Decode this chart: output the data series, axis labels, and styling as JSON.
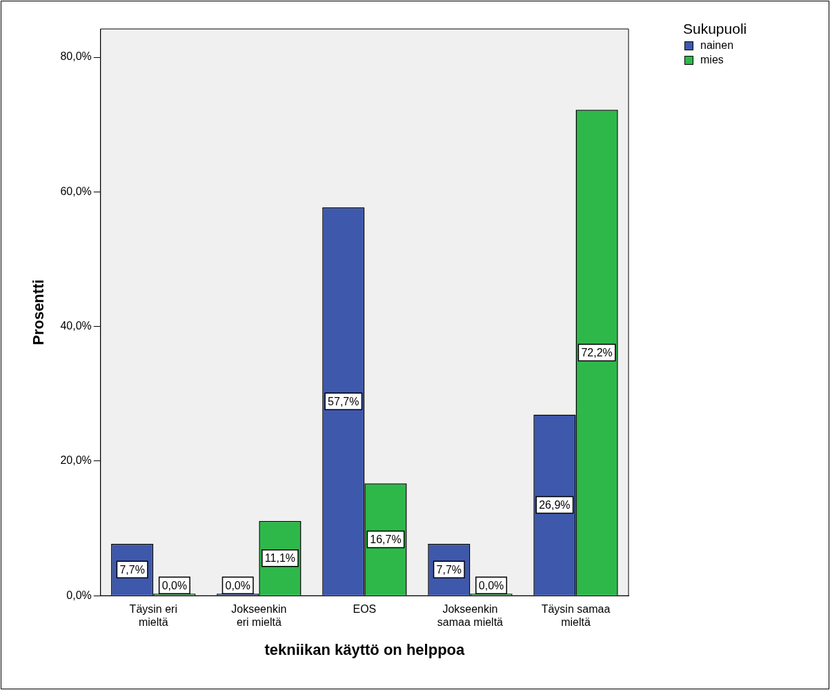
{
  "chart_data": {
    "type": "bar",
    "xlabel": "tekniikan käyttö on helppoa",
    "ylabel": "Prosentti",
    "legend_title": "Sukupuoli",
    "legend": "top right",
    "categories": [
      "Täysin eri mieltä",
      "Jokseenkin eri mieltä",
      "EOS",
      "Jokseenkin samaa mieltä",
      "Täysin samaa mieltä"
    ],
    "series": [
      {
        "name": "nainen",
        "color": "#3e58ac",
        "values": [
          7.7,
          0,
          57.7,
          7.7,
          26.9
        ],
        "value_labels": [
          "7,7%",
          "0,0%",
          "57,7%",
          "7,7%",
          "26,9%"
        ]
      },
      {
        "name": "mies",
        "color": "#2eb84a",
        "values": [
          0,
          11.1,
          16.7,
          0,
          72.2
        ],
        "value_labels": [
          "0,0%",
          "11,1%",
          "16,7%",
          "0,0%",
          "72,2%"
        ]
      }
    ],
    "ylim": [
      0,
      84.2
    ],
    "yticks": [
      {
        "value": 0,
        "label": "0,0%"
      },
      {
        "value": 20,
        "label": "20,0%"
      },
      {
        "value": 40,
        "label": "40,0%"
      },
      {
        "value": 60,
        "label": "60,0%"
      },
      {
        "value": 80,
        "label": "80,0%"
      }
    ],
    "grid": false
  }
}
